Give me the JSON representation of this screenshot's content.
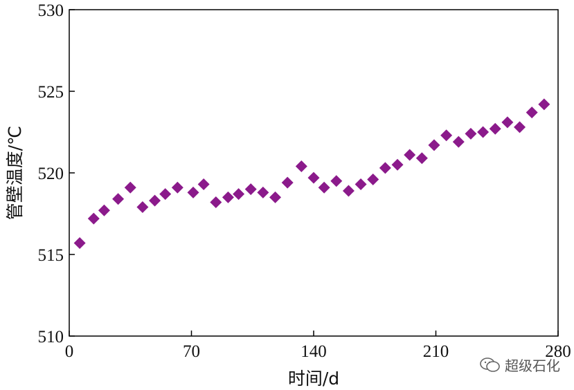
{
  "chart_data": {
    "type": "scatter",
    "xlabel": "时间/d",
    "ylabel": "管壁温度/℃",
    "xlim": [
      0,
      280
    ],
    "ylim": [
      510,
      530
    ],
    "xticks": [
      "0",
      "70",
      "140",
      "210",
      "280"
    ],
    "yticks": [
      "510",
      "515",
      "520",
      "525",
      "530"
    ],
    "marker": "diamond",
    "color": "#8b1a8b",
    "grid": false,
    "x": [
      6,
      14,
      20,
      28,
      35,
      42,
      49,
      55,
      62,
      71,
      77,
      84,
      91,
      97,
      104,
      111,
      118,
      125,
      133,
      140,
      146,
      153,
      160,
      167,
      174,
      181,
      188,
      195,
      202,
      209,
      216,
      223,
      230,
      237,
      244,
      251,
      258,
      265,
      272
    ],
    "y": [
      515.7,
      517.2,
      517.7,
      518.4,
      519.1,
      517.9,
      518.3,
      518.7,
      519.1,
      518.8,
      519.3,
      518.2,
      518.5,
      518.7,
      519.0,
      518.8,
      518.5,
      519.4,
      520.4,
      519.7,
      519.1,
      519.5,
      518.9,
      519.3,
      519.6,
      520.3,
      520.5,
      521.1,
      520.9,
      521.7,
      522.3,
      521.9,
      522.4,
      522.5,
      522.7,
      523.1,
      522.8,
      523.7,
      524.2
    ]
  },
  "watermark": {
    "text": "超级石化",
    "icon": "wechat-icon"
  }
}
